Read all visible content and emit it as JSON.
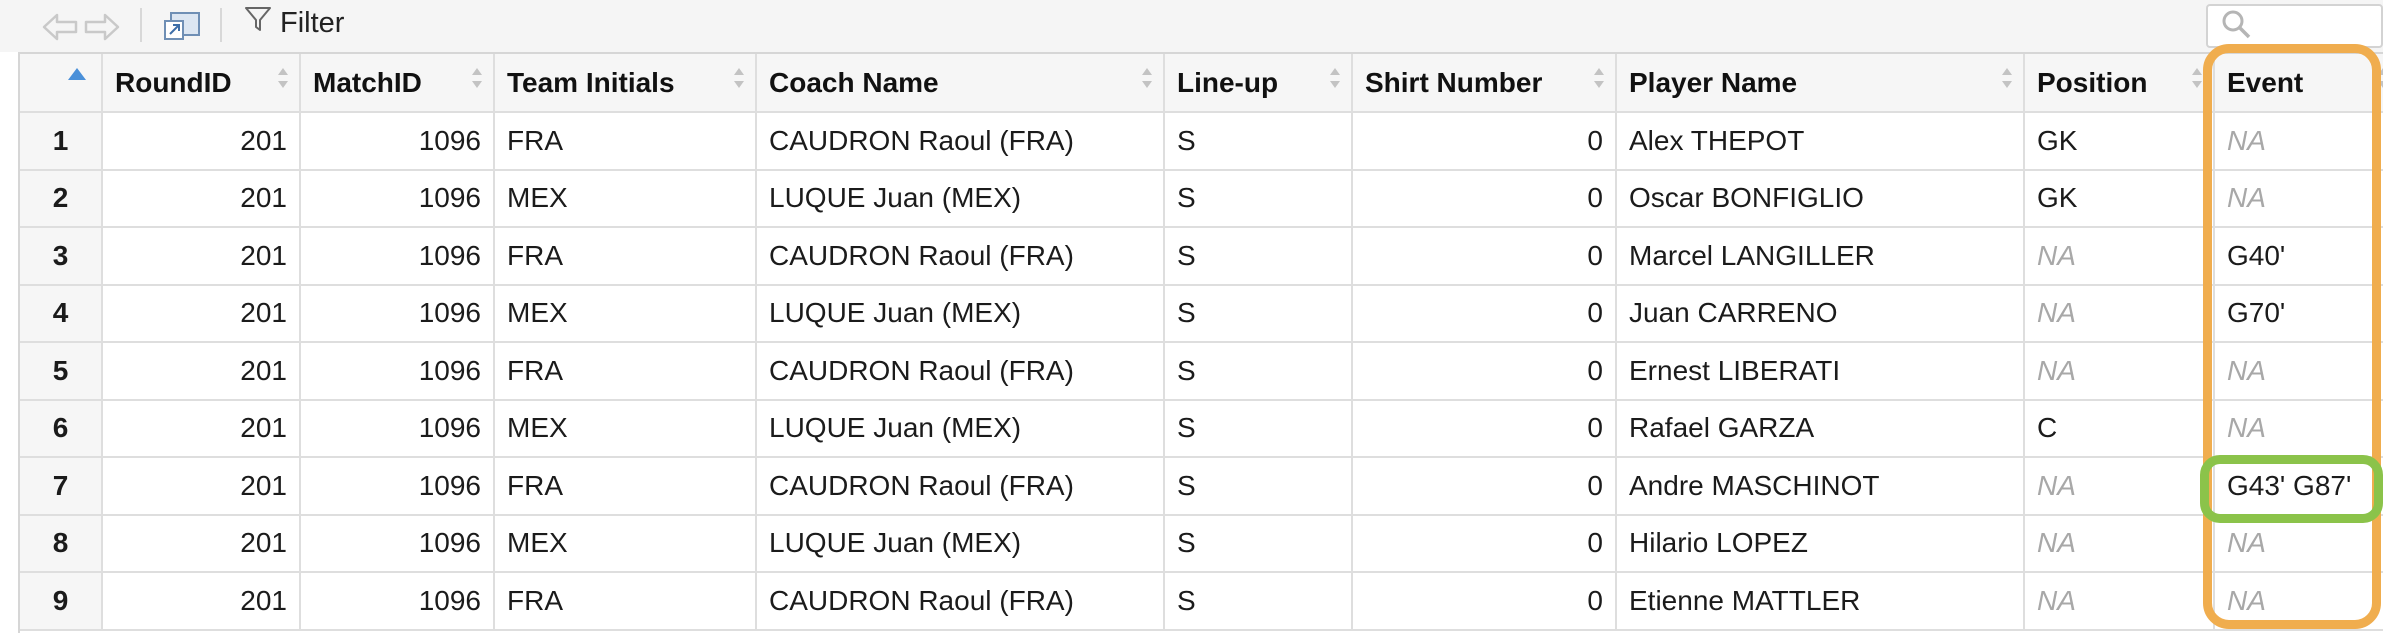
{
  "toolbar": {
    "back_icon": "arrow-left-icon",
    "forward_icon": "arrow-right-icon",
    "popout_icon": "popout-window-icon",
    "filter_icon": "funnel-icon",
    "filter_label": "Filter",
    "search_icon": "magnifier-icon",
    "search_value": ""
  },
  "table": {
    "sort_indicator_active": "ascending",
    "columns": [
      "RoundID",
      "MatchID",
      "Team Initials",
      "Coach Name",
      "Line-up",
      "Shirt Number",
      "Player Name",
      "Position",
      "Event"
    ],
    "rows": [
      [
        "1",
        "201",
        "1096",
        "FRA",
        "CAUDRON Raoul (FRA)",
        "S",
        "0",
        "Alex THEPOT",
        "GK",
        "NA"
      ],
      [
        "2",
        "201",
        "1096",
        "MEX",
        "LUQUE Juan (MEX)",
        "S",
        "0",
        "Oscar BONFIGLIO",
        "GK",
        "NA"
      ],
      [
        "3",
        "201",
        "1096",
        "FRA",
        "CAUDRON Raoul (FRA)",
        "S",
        "0",
        "Marcel LANGILLER",
        "NA",
        "G40'"
      ],
      [
        "4",
        "201",
        "1096",
        "MEX",
        "LUQUE Juan (MEX)",
        "S",
        "0",
        "Juan CARRENO",
        "NA",
        "G70'"
      ],
      [
        "5",
        "201",
        "1096",
        "FRA",
        "CAUDRON Raoul (FRA)",
        "S",
        "0",
        "Ernest LIBERATI",
        "NA",
        "NA"
      ],
      [
        "6",
        "201",
        "1096",
        "MEX",
        "LUQUE Juan (MEX)",
        "S",
        "0",
        "Rafael GARZA",
        "C",
        "NA"
      ],
      [
        "7",
        "201",
        "1096",
        "FRA",
        "CAUDRON Raoul (FRA)",
        "S",
        "0",
        "Andre MASCHINOT",
        "NA",
        "G43' G87'"
      ],
      [
        "8",
        "201",
        "1096",
        "MEX",
        "LUQUE Juan (MEX)",
        "S",
        "0",
        "Hilario LOPEZ",
        "NA",
        "NA"
      ],
      [
        "9",
        "201",
        "1096",
        "FRA",
        "CAUDRON Raoul (FRA)",
        "S",
        "0",
        "Etienne MATTLER",
        "NA",
        "NA"
      ]
    ]
  },
  "highlights": {
    "event_column_color": "#f0ad4e",
    "event_cell_color": "#8bc34a"
  }
}
